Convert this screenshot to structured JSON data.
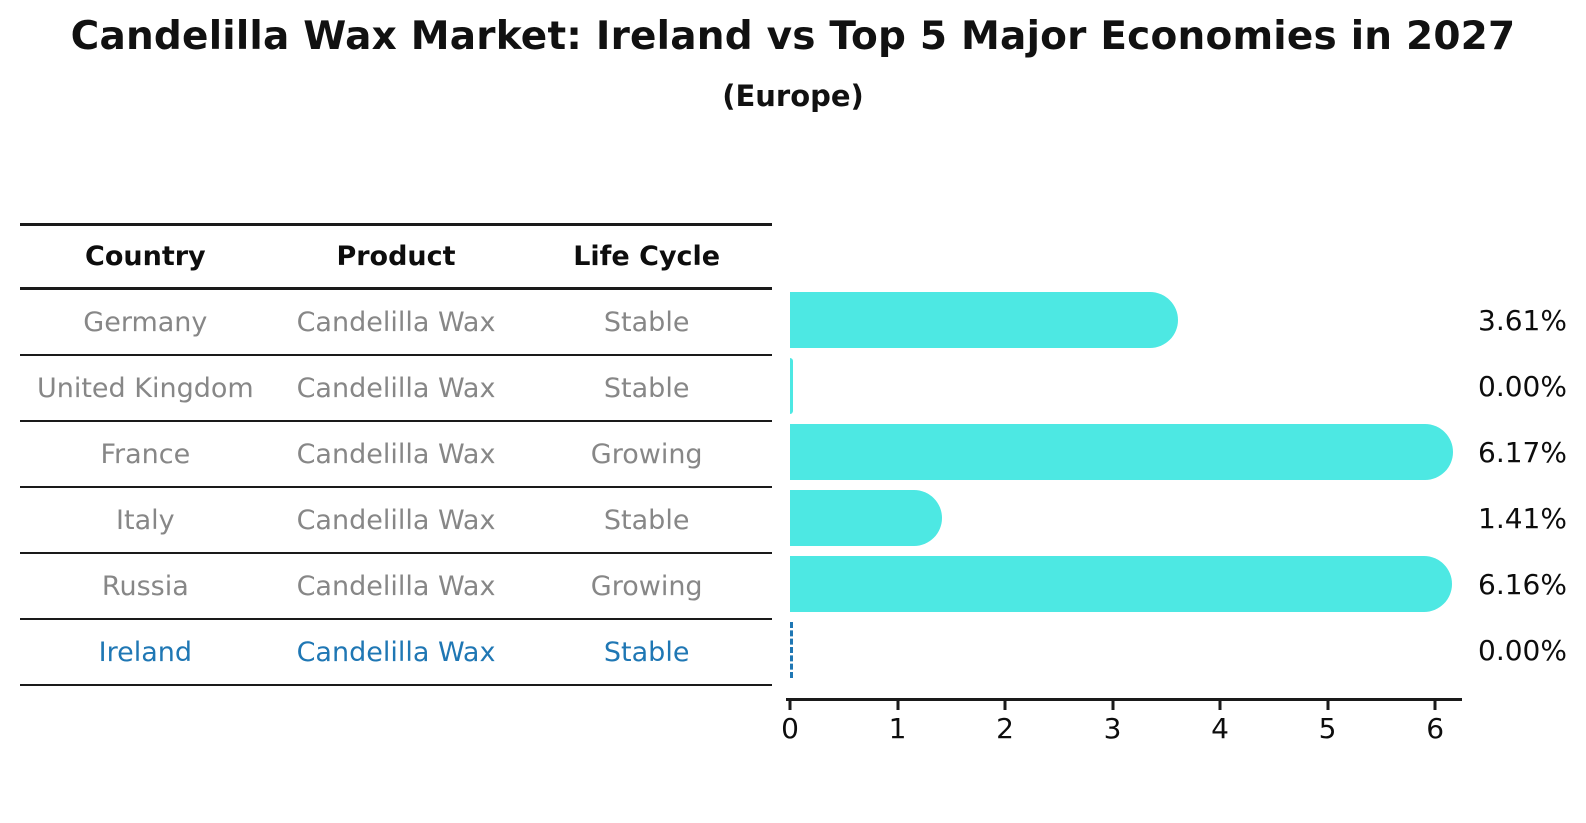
{
  "title": "Candelilla Wax Market: Ireland vs Top 5 Major Economies in 2027",
  "subtitle": "(Europe)",
  "table": {
    "headers": [
      "Country",
      "Product",
      "Life Cycle"
    ],
    "rows": [
      {
        "country": "Germany",
        "product": "Candelilla Wax",
        "life_cycle": "Stable",
        "highlight": false
      },
      {
        "country": "United Kingdom",
        "product": "Candelilla Wax",
        "life_cycle": "Stable",
        "highlight": false
      },
      {
        "country": "France",
        "product": "Candelilla Wax",
        "life_cycle": "Growing",
        "highlight": false
      },
      {
        "country": "Italy",
        "product": "Candelilla Wax",
        "life_cycle": "Stable",
        "highlight": false
      },
      {
        "country": "Russia",
        "product": "Candelilla Wax",
        "life_cycle": "Growing",
        "highlight": false
      },
      {
        "country": "Ireland",
        "product": "Candelilla Wax",
        "life_cycle": "Stable",
        "highlight": true
      }
    ]
  },
  "chart_data": {
    "type": "bar",
    "orientation": "horizontal",
    "title": "Candelilla Wax Market: Ireland vs Top 5 Major Economies in 2027",
    "subtitle": "(Europe)",
    "categories": [
      "Germany",
      "United Kingdom",
      "France",
      "Italy",
      "Russia",
      "Ireland"
    ],
    "values": [
      3.61,
      0.0,
      6.17,
      1.41,
      6.16,
      0.0
    ],
    "value_labels": [
      "3.61%",
      "0.00%",
      "6.17%",
      "1.41%",
      "6.16%",
      "0.00%"
    ],
    "x_ticks": [
      0,
      1,
      2,
      3,
      4,
      5,
      6
    ],
    "xlim": [
      0,
      6.25
    ],
    "xlabel": "",
    "ylabel": "",
    "grid": false,
    "legend": false,
    "bar_color": "#4DE8E3",
    "highlight_index": 5,
    "highlight_color": "#1f77b4",
    "axis_color": "#1a1a1a",
    "row_text_color": "#878787"
  }
}
